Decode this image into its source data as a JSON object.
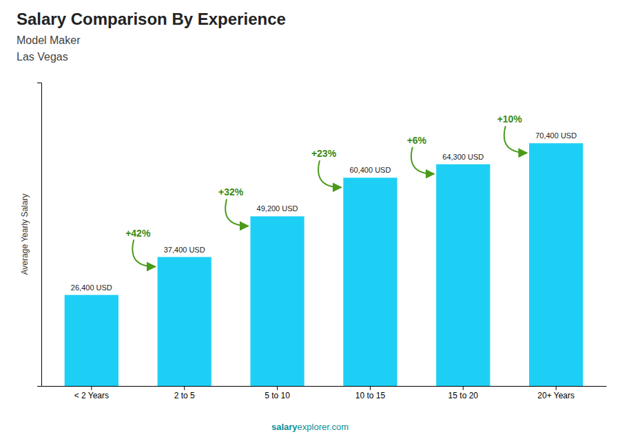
{
  "chart_data": {
    "type": "bar",
    "title": "Salary Comparison By Experience",
    "subtitle": [
      "Model Maker",
      "Las Vegas"
    ],
    "categories": [
      "< 2 Years",
      "2 to 5",
      "5 to 10",
      "10 to 15",
      "15 to 20",
      "20+ Years"
    ],
    "values": [
      26400,
      37400,
      49200,
      60400,
      64300,
      70400
    ],
    "value_labels": [
      "26,400 USD",
      "37,400 USD",
      "49,200 USD",
      "60,400 USD",
      "64,300 USD",
      "70,400 USD"
    ],
    "data_labels": true,
    "annotations": [
      "+42%",
      "+32%",
      "+23%",
      "+6%",
      "+10%"
    ],
    "ylabel": "Average Yearly Salary",
    "footer": [
      "salary",
      "explorer.com"
    ],
    "color": "#1ecff5",
    "ylim": [
      0,
      88000
    ],
    "tick_labels": "x",
    "grid": false
  }
}
